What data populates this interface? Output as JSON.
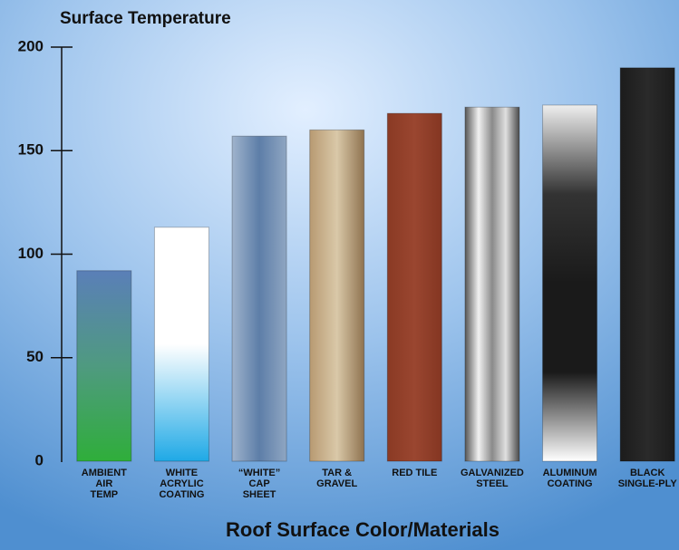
{
  "chart_data": {
    "type": "bar",
    "title": "Surface Temperature",
    "x_label": "Roof Surface Color/Materials",
    "categories": [
      [
        "AMBIENT",
        "AIR",
        "TEMP"
      ],
      [
        "WHITE",
        "ACRYLIC",
        "COATING"
      ],
      [
        "“WHITE”",
        "CAP",
        "SHEET"
      ],
      [
        "TAR &",
        "GRAVEL"
      ],
      [
        "RED TILE"
      ],
      [
        "GALVANIZED",
        "STEEL"
      ],
      [
        "ALUMINUM",
        "COATING"
      ],
      [
        "BLACK",
        "SINGLE-PLY"
      ]
    ],
    "values": [
      92,
      113,
      157,
      160,
      168,
      171,
      172,
      190
    ],
    "colors": [
      {
        "direction": "vertical",
        "stops": [
          "#5a7fb8",
          "#4f9a80",
          "#2fae3a"
        ]
      },
      {
        "direction": "vertical",
        "stops": [
          "#ffffff",
          "#ffffff",
          "#1fa9e6"
        ]
      },
      {
        "direction": "horizontal",
        "stops": [
          "#9fb3cc",
          "#5d7ea8",
          "#8fa6c2"
        ]
      },
      {
        "direction": "horizontal",
        "stops": [
          "#b89a72",
          "#d9c8a8",
          "#8f7350"
        ]
      },
      {
        "direction": "horizontal",
        "stops": [
          "#8a3a24",
          "#9a4630",
          "#843622"
        ]
      },
      {
        "direction": "horizontal",
        "stops": [
          "#555555",
          "#f2f2f2",
          "#8a8a8a",
          "#e0e0e0",
          "#4a4a4a"
        ]
      },
      {
        "direction": "vertical",
        "stops": [
          "#eeeeee",
          "#333333",
          "#1a1a1a",
          "#1a1a1a",
          "#ffffff"
        ]
      },
      {
        "direction": "horizontal",
        "stops": [
          "#1c1c1c",
          "#2a2a2a",
          "#1c1c1c"
        ]
      }
    ],
    "ylim": [
      0,
      200
    ],
    "yticks": [
      0,
      50,
      100,
      150,
      200
    ]
  }
}
